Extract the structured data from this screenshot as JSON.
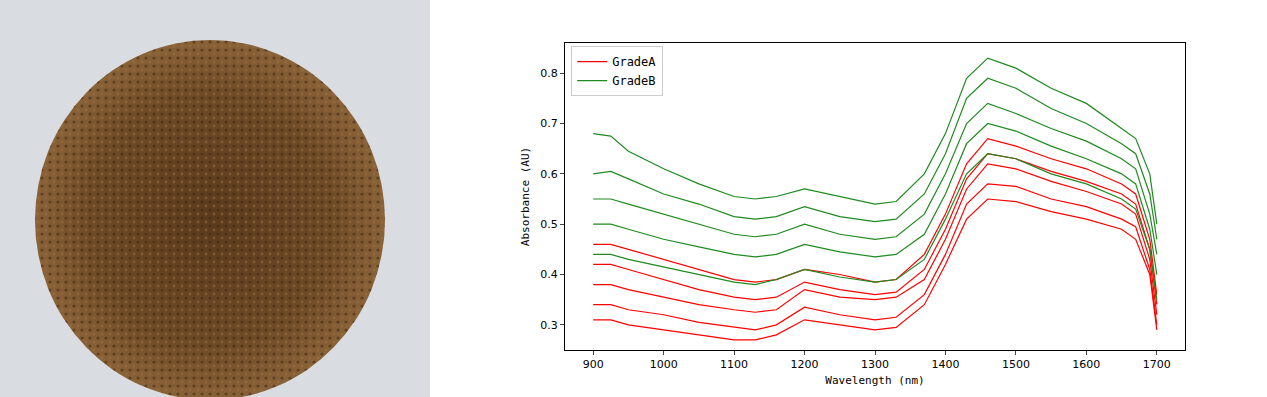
{
  "chart_data": {
    "type": "line",
    "xlabel": "Wavelength (nm)",
    "ylabel": "Absorbance (AU)",
    "xlim": [
      860,
      1740
    ],
    "ylim": [
      0.25,
      0.86
    ],
    "xticks": [
      900,
      1000,
      1100,
      1200,
      1300,
      1400,
      1500,
      1600,
      1700
    ],
    "yticks": [
      0.3,
      0.4,
      0.5,
      0.6,
      0.7,
      0.8
    ],
    "legend": "upper left",
    "x": [
      900,
      925,
      950,
      1000,
      1050,
      1100,
      1130,
      1160,
      1200,
      1250,
      1300,
      1330,
      1370,
      1400,
      1430,
      1460,
      1500,
      1550,
      1600,
      1650,
      1670,
      1690,
      1700
    ],
    "series": [
      {
        "name": "GradeA",
        "color": "#ff0000",
        "values": [
          0.46,
          0.46,
          0.45,
          0.43,
          0.41,
          0.39,
          0.385,
          0.39,
          0.41,
          0.4,
          0.385,
          0.39,
          0.44,
          0.52,
          0.62,
          0.67,
          0.655,
          0.63,
          0.61,
          0.58,
          0.56,
          0.47,
          0.36
        ]
      },
      {
        "name": "GradeA",
        "color": "#ff0000",
        "values": [
          0.42,
          0.42,
          0.41,
          0.39,
          0.37,
          0.355,
          0.35,
          0.355,
          0.385,
          0.37,
          0.36,
          0.365,
          0.41,
          0.49,
          0.59,
          0.64,
          0.63,
          0.605,
          0.585,
          0.56,
          0.54,
          0.45,
          0.34
        ]
      },
      {
        "name": "GradeA",
        "color": "#ff0000",
        "values": [
          0.38,
          0.38,
          0.37,
          0.355,
          0.34,
          0.33,
          0.325,
          0.33,
          0.37,
          0.355,
          0.35,
          0.355,
          0.39,
          0.47,
          0.57,
          0.62,
          0.61,
          0.585,
          0.565,
          0.54,
          0.52,
          0.43,
          0.32
        ]
      },
      {
        "name": "GradeA",
        "color": "#ff0000",
        "values": [
          0.34,
          0.34,
          0.33,
          0.32,
          0.305,
          0.295,
          0.29,
          0.3,
          0.335,
          0.32,
          0.31,
          0.315,
          0.36,
          0.44,
          0.54,
          0.58,
          0.575,
          0.55,
          0.535,
          0.51,
          0.495,
          0.41,
          0.3
        ]
      },
      {
        "name": "GradeA",
        "color": "#ff0000",
        "values": [
          0.31,
          0.31,
          0.3,
          0.29,
          0.28,
          0.27,
          0.27,
          0.28,
          0.31,
          0.3,
          0.29,
          0.295,
          0.34,
          0.42,
          0.51,
          0.55,
          0.545,
          0.525,
          0.51,
          0.49,
          0.47,
          0.4,
          0.29
        ]
      },
      {
        "name": "GradeB",
        "color": "#1f8a1f",
        "values": [
          0.44,
          0.44,
          0.43,
          0.415,
          0.4,
          0.385,
          0.38,
          0.39,
          0.41,
          0.395,
          0.385,
          0.39,
          0.43,
          0.51,
          0.6,
          0.64,
          0.63,
          0.6,
          0.58,
          0.55,
          0.53,
          0.45,
          0.35
        ]
      },
      {
        "name": "GradeB",
        "color": "#1f8a1f",
        "values": [
          0.5,
          0.5,
          0.49,
          0.47,
          0.455,
          0.44,
          0.435,
          0.44,
          0.46,
          0.445,
          0.435,
          0.44,
          0.48,
          0.56,
          0.66,
          0.7,
          0.685,
          0.655,
          0.63,
          0.6,
          0.58,
          0.49,
          0.4
        ]
      },
      {
        "name": "GradeB",
        "color": "#1f8a1f",
        "values": [
          0.55,
          0.55,
          0.54,
          0.52,
          0.5,
          0.48,
          0.475,
          0.48,
          0.5,
          0.48,
          0.47,
          0.475,
          0.52,
          0.6,
          0.7,
          0.74,
          0.72,
          0.69,
          0.665,
          0.63,
          0.61,
          0.52,
          0.44
        ]
      },
      {
        "name": "GradeB",
        "color": "#1f8a1f",
        "values": [
          0.6,
          0.605,
          0.59,
          0.56,
          0.54,
          0.515,
          0.51,
          0.515,
          0.535,
          0.515,
          0.505,
          0.51,
          0.56,
          0.64,
          0.75,
          0.79,
          0.77,
          0.73,
          0.7,
          0.66,
          0.64,
          0.56,
          0.47
        ]
      },
      {
        "name": "GradeB",
        "color": "#1f8a1f",
        "values": [
          0.68,
          0.675,
          0.645,
          0.61,
          0.58,
          0.555,
          0.55,
          0.555,
          0.57,
          0.555,
          0.54,
          0.545,
          0.6,
          0.68,
          0.79,
          0.83,
          0.81,
          0.77,
          0.74,
          0.69,
          0.67,
          0.6,
          0.5
        ]
      }
    ]
  }
}
